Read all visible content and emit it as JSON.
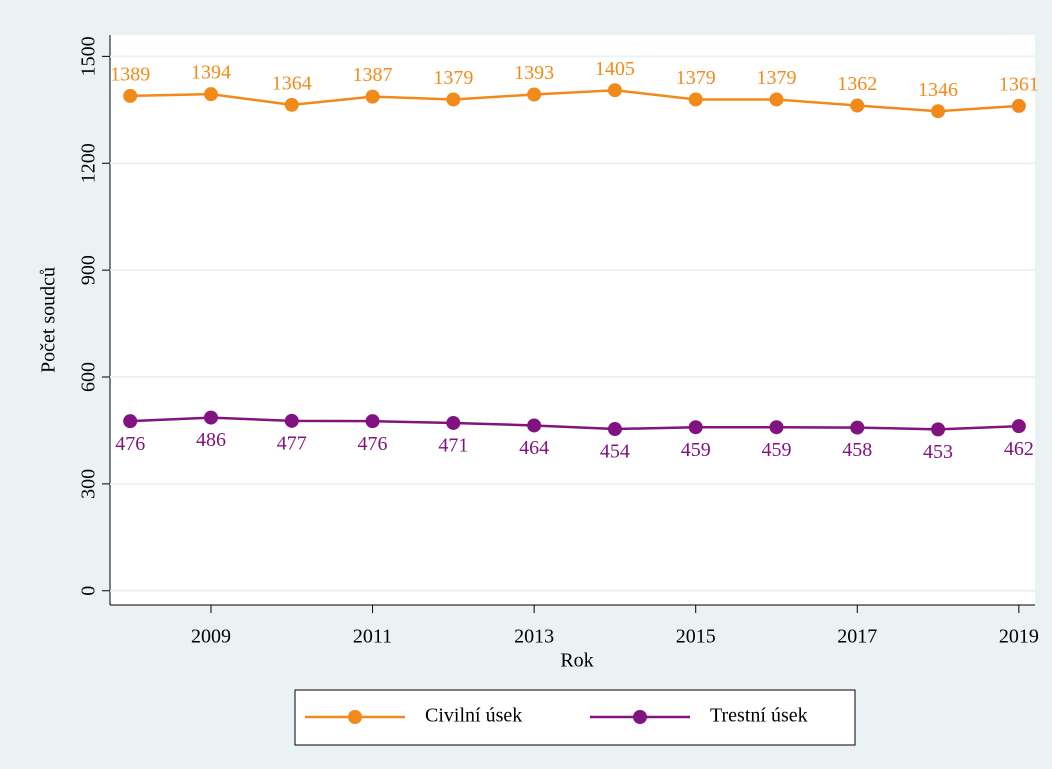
{
  "chart_data": {
    "type": "line",
    "x_label": "Rok",
    "y_label": "Počet soudců",
    "x": [
      2008,
      2009,
      2010,
      2011,
      2012,
      2013,
      2014,
      2015,
      2016,
      2017,
      2018,
      2019
    ],
    "series": [
      {
        "name": "Civilní úsek",
        "color": "#f28a1a",
        "values": [
          1389,
          1394,
          1364,
          1387,
          1379,
          1393,
          1405,
          1379,
          1379,
          1362,
          1346,
          1361
        ]
      },
      {
        "name": "Trestní úsek",
        "color": "#80137f",
        "values": [
          476,
          486,
          477,
          476,
          471,
          464,
          454,
          459,
          459,
          458,
          453,
          462
        ]
      }
    ],
    "xlim": [
      2007.75,
      2019.2
    ],
    "xticks": [
      2009,
      2011,
      2013,
      2015,
      2017,
      2019
    ],
    "ylim": [
      -40,
      1560
    ],
    "yticks": [
      0,
      300,
      600,
      900,
      1200,
      1500
    ],
    "grid": true,
    "legend": "bottom"
  }
}
